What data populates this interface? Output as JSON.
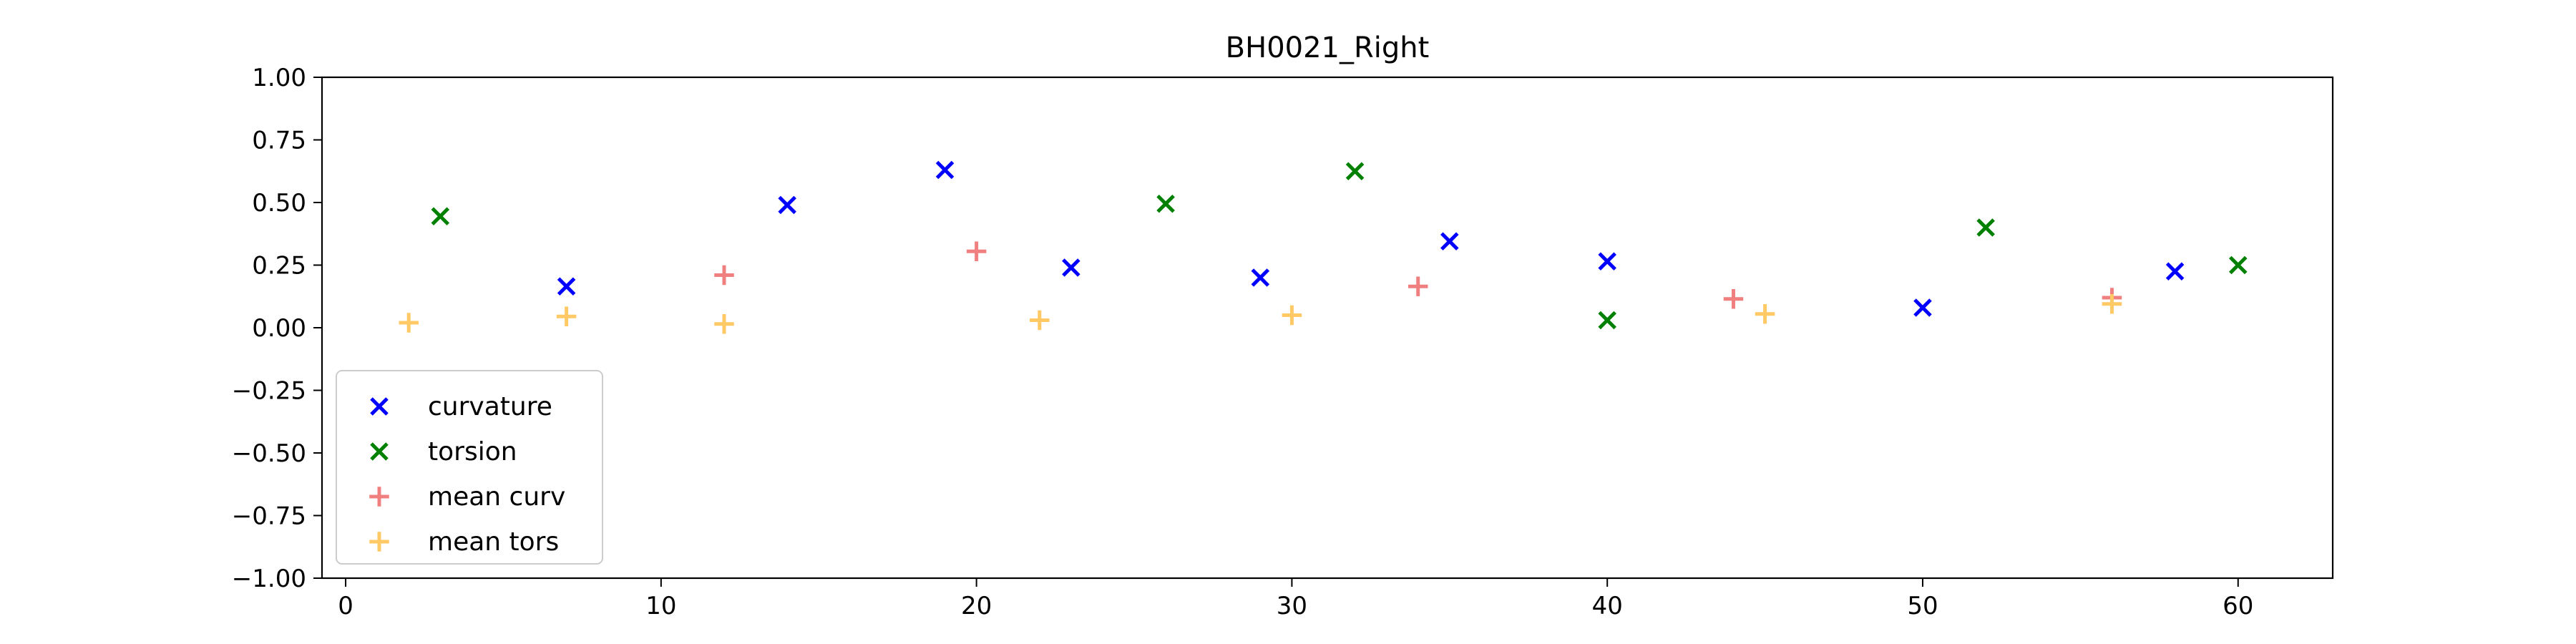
{
  "chart_data": {
    "type": "scatter",
    "title": "BH0021_Right",
    "xlabel": "",
    "ylabel": "",
    "xlim": [
      -0.75,
      63
    ],
    "ylim": [
      -1.0,
      1.0
    ],
    "xticks": [
      0,
      10,
      20,
      30,
      40,
      50,
      60
    ],
    "xtick_labels": [
      "0",
      "10",
      "20",
      "30",
      "40",
      "50",
      "60"
    ],
    "yticks": [
      1.0,
      0.75,
      0.5,
      0.25,
      0.0,
      -0.25,
      -0.5,
      -0.75,
      -1.0
    ],
    "ytick_labels": [
      "1.00",
      "0.75",
      "0.50",
      "0.25",
      "0.00",
      "−0.25",
      "−0.50",
      "−0.75",
      "−1.00"
    ],
    "grid": false,
    "legend_position": "lower-left",
    "series": [
      {
        "name": "curvature",
        "marker": "x",
        "color": "#0000ff",
        "x": [
          7,
          14,
          19,
          23,
          29,
          35,
          40,
          50,
          58
        ],
        "y": [
          0.165,
          0.49,
          0.63,
          0.24,
          0.2,
          0.345,
          0.265,
          0.08,
          0.225
        ]
      },
      {
        "name": "torsion",
        "marker": "x",
        "color": "#008000",
        "x": [
          3,
          26,
          32,
          40,
          52,
          60
        ],
        "y": [
          0.445,
          0.495,
          0.625,
          0.03,
          0.4,
          0.25
        ]
      },
      {
        "name": "mean curv",
        "marker": "+",
        "color": "#f08080",
        "x": [
          12,
          20,
          34,
          44,
          56
        ],
        "y": [
          0.21,
          0.305,
          0.165,
          0.115,
          0.12
        ]
      },
      {
        "name": "mean tors",
        "marker": "+",
        "color": "#ffc966",
        "x": [
          2,
          7,
          12,
          22,
          30,
          45,
          56
        ],
        "y": [
          0.02,
          0.045,
          0.015,
          0.03,
          0.05,
          0.055,
          0.095
        ]
      }
    ]
  }
}
